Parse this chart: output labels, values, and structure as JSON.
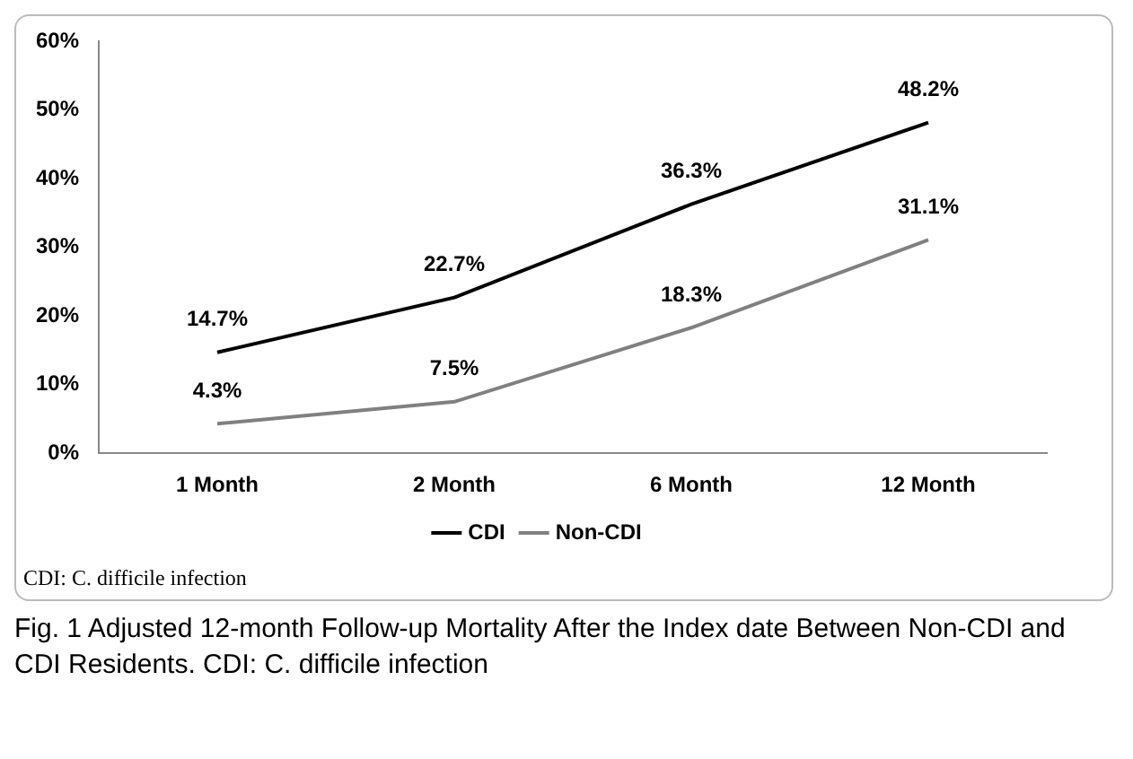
{
  "chart_data": {
    "type": "line",
    "categories": [
      "1 Month",
      "2 Month",
      "6 Month",
      "12 Month"
    ],
    "series": [
      {
        "name": "CDI",
        "color": "#000000",
        "values": [
          14.7,
          22.7,
          36.3,
          48.2
        ],
        "value_labels": [
          "14.7%",
          "22.7%",
          "36.3%",
          "48.2%"
        ]
      },
      {
        "name": "Non-CDI",
        "color": "#808080",
        "values": [
          4.3,
          7.5,
          18.3,
          31.1
        ],
        "value_labels": [
          "4.3%",
          "7.5%",
          "18.3%",
          "31.1%"
        ]
      }
    ],
    "ylim": [
      0,
      60
    ],
    "yticks": [
      {
        "value": 0,
        "label": "0%"
      },
      {
        "value": 10,
        "label": "10%"
      },
      {
        "value": 20,
        "label": "20%"
      },
      {
        "value": 30,
        "label": "30%"
      },
      {
        "value": 40,
        "label": "40%"
      },
      {
        "value": 50,
        "label": "50%"
      },
      {
        "value": 60,
        "label": "60%"
      }
    ],
    "grid": false,
    "legend": "bottom",
    "marker": "none",
    "line_style": "solid",
    "annotations": [
      "CDI: C. difficile infection",
      "Fig. 1 Adjusted 12-month Follow-up Mortality After the Index date Between Non-CDI and CDI Residents. CDI: C. difficile infection"
    ]
  }
}
